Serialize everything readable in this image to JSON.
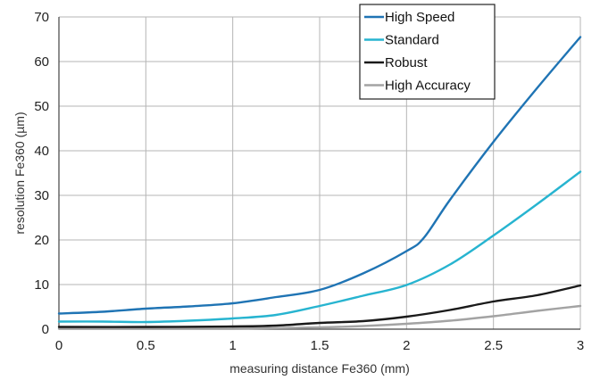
{
  "chart_data": {
    "type": "line",
    "xlabel": "measuring distance Fe360 (mm)",
    "ylabel": "resolution Fe360 (µm)",
    "xlim": [
      0,
      3
    ],
    "ylim": [
      0,
      70
    ],
    "xticks": [
      "0",
      "0.5",
      "1",
      "1.5",
      "2",
      "2.5",
      "3"
    ],
    "yticks": [
      "0",
      "10",
      "20",
      "30",
      "40",
      "50",
      "60",
      "70"
    ],
    "grid": true,
    "legend_position": "top-right",
    "series": [
      {
        "name": "High Speed",
        "color": "#1f74b4",
        "x": [
          0,
          0.25,
          0.5,
          0.75,
          1,
          1.25,
          1.5,
          1.75,
          2,
          2.1,
          2.25,
          2.5,
          2.75,
          3
        ],
        "y": [
          3.5,
          3.9,
          4.6,
          5.1,
          5.8,
          7.2,
          8.8,
          12.5,
          17.5,
          20.5,
          29,
          42,
          54,
          65.5
        ]
      },
      {
        "name": "Standard",
        "color": "#27b4d0",
        "x": [
          0,
          0.25,
          0.5,
          0.75,
          1,
          1.25,
          1.5,
          1.75,
          2,
          2.25,
          2.5,
          2.75,
          3
        ],
        "y": [
          1.7,
          1.7,
          1.6,
          1.9,
          2.4,
          3.2,
          5.2,
          7.5,
          9.9,
          14.5,
          21,
          28,
          35.3
        ]
      },
      {
        "name": "Robust",
        "color": "#1a1a1a",
        "x": [
          0,
          0.5,
          1,
          1.25,
          1.5,
          1.75,
          2,
          2.25,
          2.5,
          2.75,
          3
        ],
        "y": [
          0.5,
          0.5,
          0.6,
          0.8,
          1.4,
          1.8,
          2.8,
          4.3,
          6.2,
          7.6,
          9.8
        ]
      },
      {
        "name": "High Accuracy",
        "color": "#a3a3a3",
        "x": [
          0,
          0.5,
          1,
          1.5,
          1.75,
          2,
          2.25,
          2.5,
          2.75,
          3
        ],
        "y": [
          0.1,
          0.1,
          0.1,
          0.4,
          0.7,
          1.2,
          1.9,
          2.9,
          4.1,
          5.2
        ]
      }
    ]
  }
}
